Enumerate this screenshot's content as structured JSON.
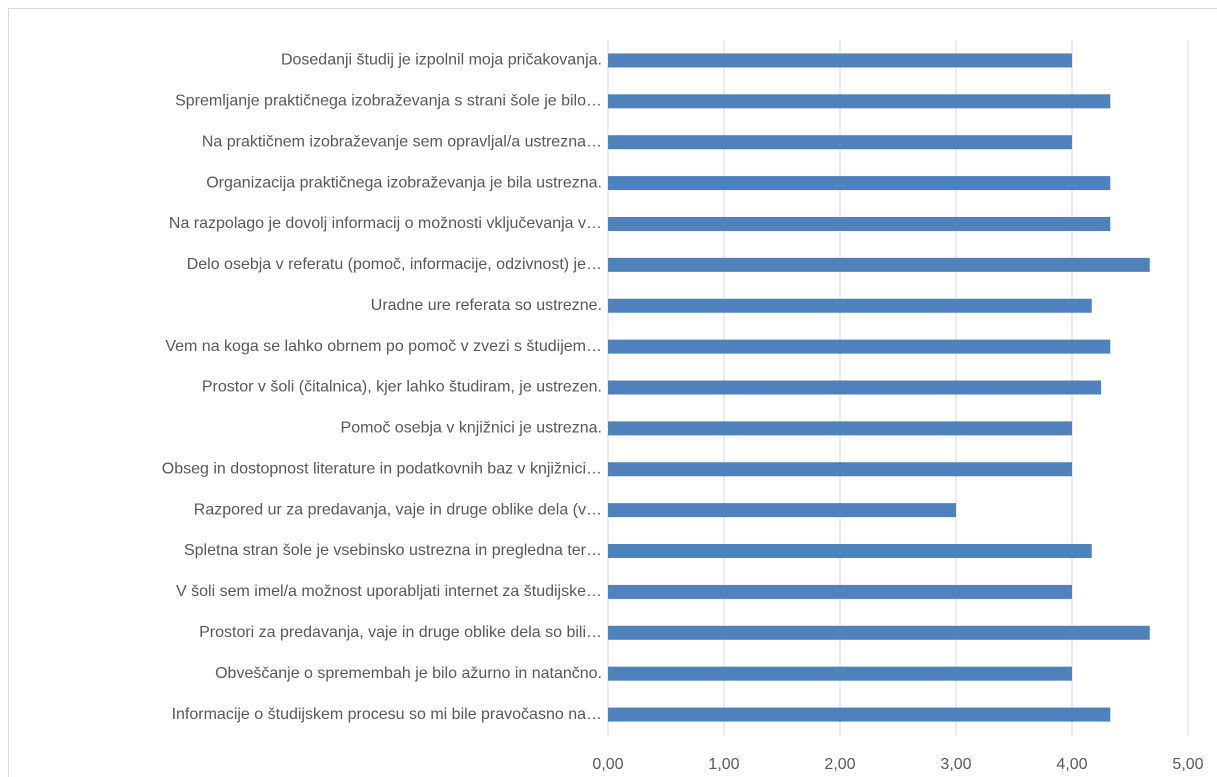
{
  "chart_data": {
    "type": "bar",
    "orientation": "horizontal",
    "categories": [
      "Dosedanji študij je izpolnil moja pričakovanja.",
      "Spremljanje praktičnega izobraževanja s strani šole je bilo…",
      "Na praktičnem izobraževanje sem opravljal/a ustrezna…",
      "Organizacija praktičnega izobraževanja je bila ustrezna.",
      "Na razpolago je dovolj informacij o možnosti vključevanja v…",
      "Delo osebja v referatu (pomoč, informacije, odzivnost) je…",
      "Uradne ure referata so ustrezne.",
      "Vem na koga se lahko obrnem po pomoč v zvezi s študijem…",
      "Prostor v šoli (čitalnica), kjer lahko študiram, je ustrezen.",
      "Pomoč osebja v knjižnici je ustrezna.",
      "Obseg in dostopnost literature in podatkovnih baz v knjižnici…",
      "Razpored ur za predavanja, vaje in druge oblike dela (v…",
      "Spletna stran šole je vsebinsko ustrezna in pregledna ter…",
      "V šoli sem imel/a možnost uporabljati internet za študijske…",
      "Prostori za predavanja, vaje in druge oblike dela so bili…",
      "Obveščanje o spremembah je bilo ažurno in natančno.",
      "Informacije o študijskem procesu so mi bile pravočasno na…"
    ],
    "values": [
      4.0,
      4.33,
      4.0,
      4.33,
      4.33,
      4.67,
      4.17,
      4.33,
      4.25,
      4.0,
      4.0,
      3.0,
      4.17,
      4.0,
      4.67,
      4.0,
      4.33
    ],
    "color": "#4f81bd",
    "xlim": [
      0,
      5
    ],
    "xticks": [
      {
        "value": 0,
        "label": "0,00"
      },
      {
        "value": 1,
        "label": "1,00"
      },
      {
        "value": 2,
        "label": "2,00"
      },
      {
        "value": 3,
        "label": "3,00"
      },
      {
        "value": 4,
        "label": "4,00"
      },
      {
        "value": 5,
        "label": "5,00"
      }
    ],
    "grid": true
  }
}
